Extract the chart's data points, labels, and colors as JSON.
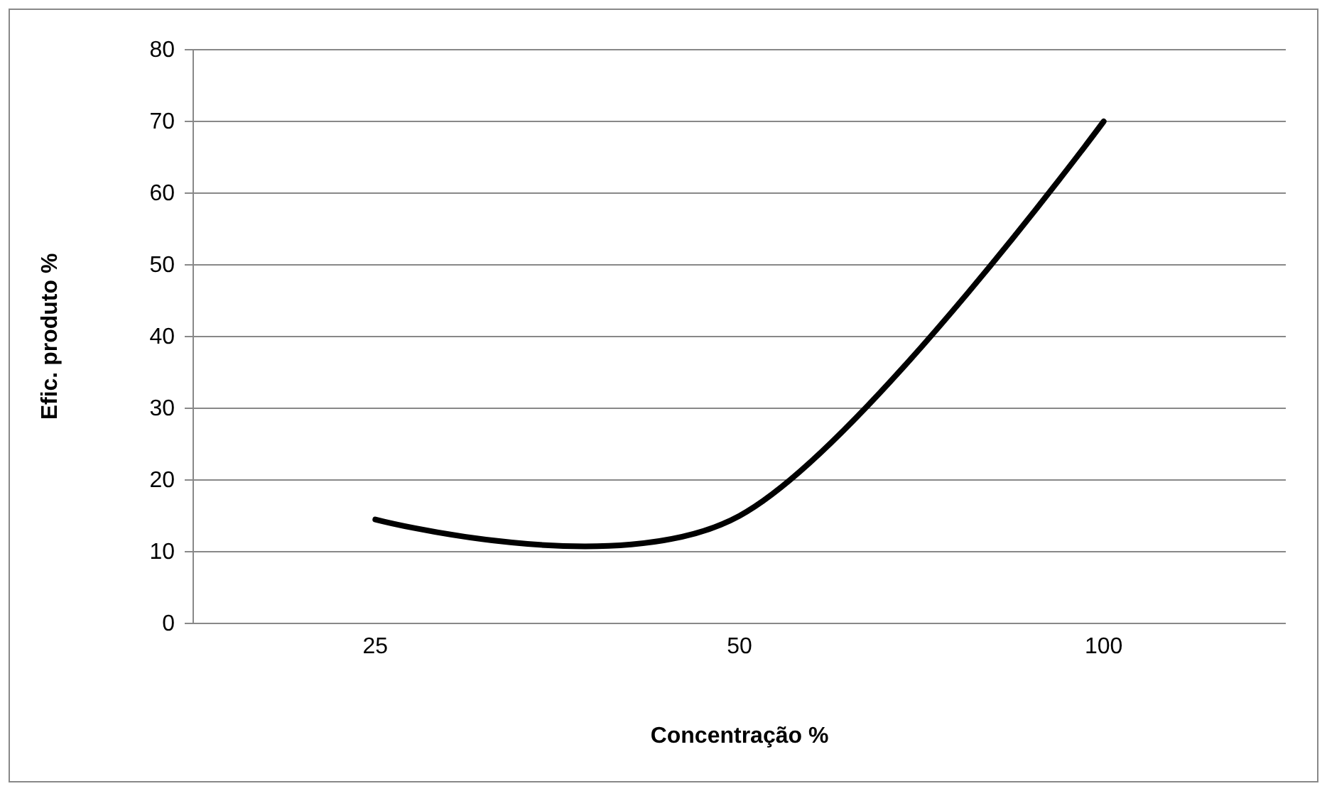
{
  "chart_data": {
    "type": "line",
    "xlabel": "Concentração %",
    "ylabel": "Efic. produto %",
    "categories": [
      "25",
      "50",
      "100"
    ],
    "series": [
      {
        "color": "#000000",
        "values": [
          14.5,
          15,
          70
        ]
      }
    ],
    "ylim": [
      0,
      80
    ],
    "yticks": [
      0,
      10,
      20,
      30,
      40,
      50,
      60,
      70,
      80
    ],
    "grid": "y",
    "legend": false,
    "marker": "none",
    "line_style": "solid"
  }
}
